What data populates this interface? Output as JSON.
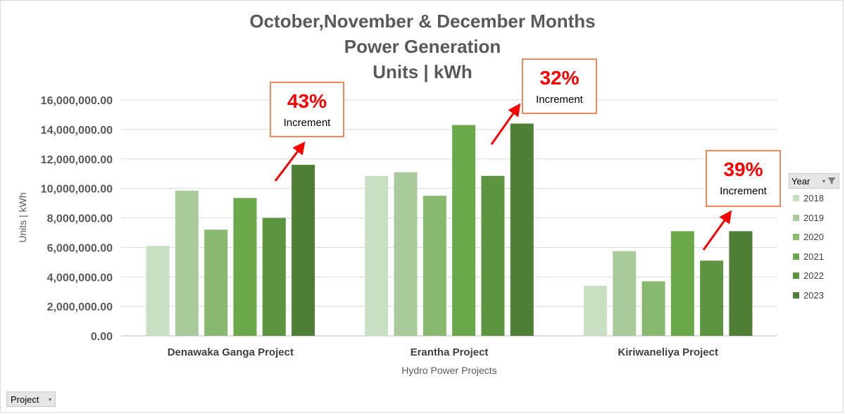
{
  "chart_data": {
    "type": "bar",
    "title": [
      "October,November & December Months",
      "Power Generation",
      "Units | kWh"
    ],
    "xlabel": "Hydro Power Projects",
    "ylabel": "Units | kWh",
    "ylim": [
      0,
      16000000
    ],
    "yticks": [
      "0.00",
      "2,000,000.00",
      "4,000,000.00",
      "6,000,000.00",
      "8,000,000.00",
      "10,000,000.00",
      "12,000,000.00",
      "14,000,000.00",
      "16,000,000.00"
    ],
    "ytick_values": [
      0,
      2000000,
      4000000,
      6000000,
      8000000,
      10000000,
      12000000,
      14000000,
      16000000
    ],
    "categories": [
      "Denawaka Ganga Project",
      "Erantha Project",
      "Kiriwaneliya  Project"
    ],
    "series": [
      {
        "name": "2018",
        "color": "#c9dfc2",
        "values": [
          6100000,
          10850000,
          3400000
        ]
      },
      {
        "name": "2019",
        "color": "#a9cb9b",
        "values": [
          9850000,
          11100000,
          5750000
        ]
      },
      {
        "name": "2020",
        "color": "#88b96f",
        "values": [
          7200000,
          9500000,
          3700000
        ]
      },
      {
        "name": "2021",
        "color": "#6aa84a",
        "values": [
          9350000,
          14300000,
          7100000
        ]
      },
      {
        "name": "2022",
        "color": "#5c9440",
        "values": [
          8000000,
          10850000,
          5100000
        ]
      },
      {
        "name": "2023",
        "color": "#4e7f35",
        "values": [
          11600000,
          14400000,
          7100000
        ]
      }
    ],
    "grid": true,
    "legend": {
      "title": "Year",
      "placement": "right"
    }
  },
  "annotations": [
    {
      "percent": "43%",
      "text": "Increment",
      "category_index": 0
    },
    {
      "percent": "32%",
      "text": "Increment",
      "category_index": 1
    },
    {
      "percent": "39%",
      "text": "Increment",
      "category_index": 2
    }
  ],
  "field_button": {
    "label": "Project",
    "icon": "dropdown-arrow-icon"
  },
  "legend_filter_icon": "filter-icon",
  "colors": {
    "axis_text": "#595959",
    "gridline": "#d9d9d9",
    "arrow": "#ff0000",
    "callout_border": "#f08a5d"
  }
}
